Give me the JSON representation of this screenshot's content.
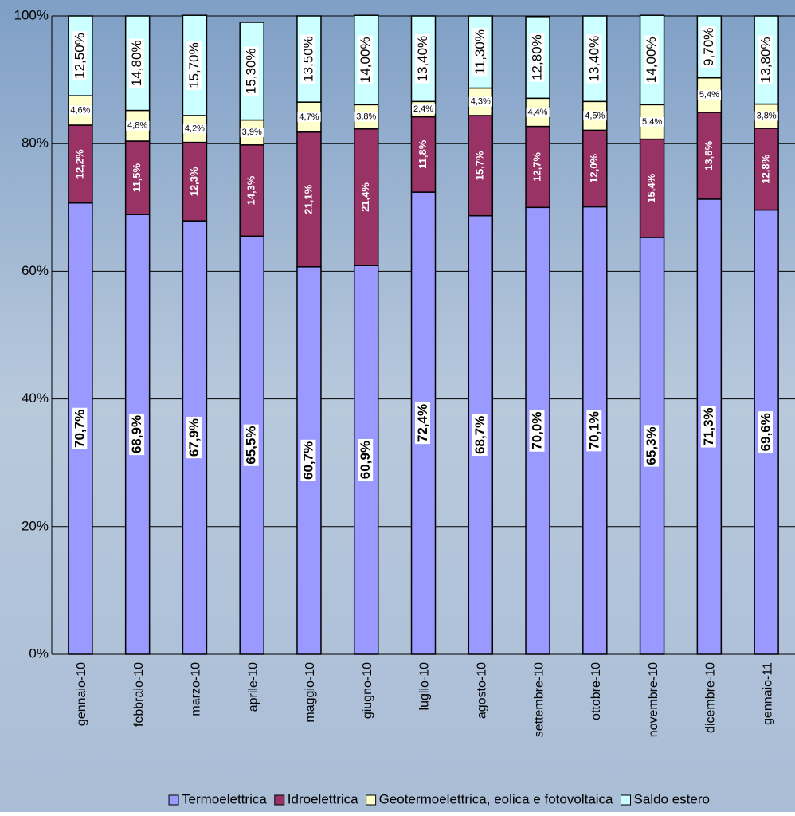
{
  "chart_data": {
    "type": "stacked-bar",
    "categories": [
      "gennaio-10",
      "febbraio-10",
      "marzo-10",
      "aprile-10",
      "maggio-10",
      "giugno-10",
      "luglio-10",
      "agosto-10",
      "settembre-10",
      "ottobre-10",
      "novembre-10",
      "dicembre-10",
      "gennaio-11"
    ],
    "series": [
      {
        "name": "Termoelettrica",
        "color": "#9999ff",
        "values": [
          70.7,
          68.9,
          67.9,
          65.5,
          60.7,
          60.9,
          72.4,
          68.7,
          70.0,
          70.1,
          65.3,
          71.3,
          69.6
        ],
        "value_labels": [
          "70,7%",
          "68,9%",
          "67,9%",
          "65,5%",
          "60,7%",
          "60,9%",
          "72,4%",
          "68,7%",
          "70,0%",
          "70,1%",
          "65,3%",
          "71,3%",
          "69,6%"
        ]
      },
      {
        "name": "Idroelettrica",
        "color": "#993366",
        "values": [
          12.2,
          11.5,
          12.3,
          14.3,
          21.1,
          21.4,
          11.8,
          15.7,
          12.7,
          12.0,
          15.4,
          13.6,
          12.8
        ],
        "value_labels": [
          "12,2%",
          "11,5%",
          "12,3%",
          "14,3%",
          "21,1%",
          "21,4%",
          "11,8%",
          "15,7%",
          "12,7%",
          "12,0%",
          "15,4%",
          "13,6%",
          "12,8%"
        ]
      },
      {
        "name": "Geotermoelettrica, eolica e fotovoltaica",
        "color": "#ffffcc",
        "values": [
          4.6,
          4.8,
          4.2,
          3.9,
          4.7,
          3.8,
          2.4,
          4.3,
          4.4,
          4.5,
          5.4,
          5.4,
          3.8
        ],
        "value_labels": [
          "4,6%",
          "4,8%",
          "4,2%",
          "3,9%",
          "4,7%",
          "3,8%",
          "2,4%",
          "4,3%",
          "4,4%",
          "4,5%",
          "5,4%",
          "5,4%",
          "3,8%"
        ]
      },
      {
        "name": "Saldo estero",
        "color": "#ccffff",
        "values": [
          12.5,
          14.8,
          15.7,
          15.3,
          13.5,
          14.0,
          13.4,
          11.3,
          12.8,
          13.4,
          14.0,
          9.7,
          13.8
        ],
        "value_labels": [
          "12,50%",
          "14,80%",
          "15,70%",
          "15,30%",
          "13,50%",
          "14,00%",
          "13,40%",
          "11,30%",
          "12,80%",
          "13,40%",
          "14,00%",
          "9,70%",
          "13,80%"
        ]
      }
    ],
    "ylim": [
      0,
      100
    ],
    "yticks": [
      {
        "value": 0,
        "label": "0%"
      },
      {
        "value": 20,
        "label": "20%"
      },
      {
        "value": 40,
        "label": "40%"
      },
      {
        "value": 60,
        "label": "60%"
      },
      {
        "value": 80,
        "label": "80%"
      },
      {
        "value": 100,
        "label": "100%"
      }
    ],
    "grid": true
  }
}
